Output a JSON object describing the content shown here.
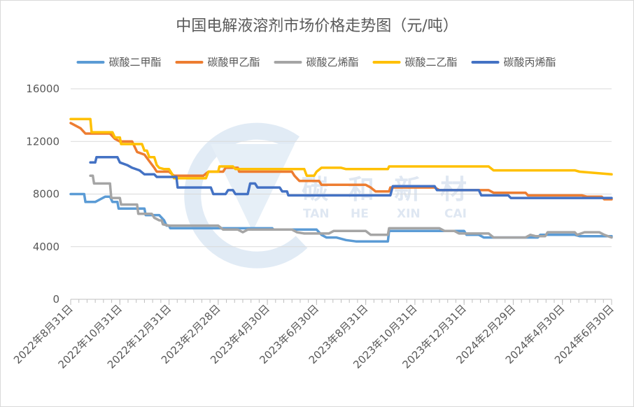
{
  "chart_data": {
    "type": "line",
    "title": "中国电解液溶剂市场价格走势图（元/吨）",
    "xlabel": "",
    "ylabel": "",
    "ylim": [
      0,
      16000
    ],
    "y_ticks": [
      "0",
      "4000",
      "8000",
      "12000",
      "16000"
    ],
    "x_range": [
      0,
      22
    ],
    "x_tick_positions": [
      0,
      2,
      4,
      6,
      8,
      10,
      12,
      14,
      16,
      18,
      20,
      22
    ],
    "categories": [
      "2022年8月31日",
      "2022年10月31日",
      "2022年12月31日",
      "2023年2月28日",
      "2023年4月30日",
      "2023年6月30日",
      "2023年8月31日",
      "2023年10月31日",
      "2023年12月31日",
      "2024年2月29日",
      "2024年4月30日",
      "2024年6月30日"
    ],
    "grid": true,
    "legend_position": "top",
    "series": [
      {
        "name": "碳酸二甲酯",
        "color": "#5b9bd5",
        "points": [
          [
            0,
            8000
          ],
          [
            0.55,
            8000
          ],
          [
            0.6,
            7400
          ],
          [
            1.0,
            7400
          ],
          [
            1.2,
            7600
          ],
          [
            1.4,
            7800
          ],
          [
            1.6,
            7800
          ],
          [
            1.7,
            7400
          ],
          [
            1.9,
            7400
          ],
          [
            1.95,
            6900
          ],
          [
            3.0,
            6900
          ],
          [
            3.05,
            6400
          ],
          [
            3.6,
            6400
          ],
          [
            3.8,
            6000
          ],
          [
            3.9,
            5600
          ],
          [
            4.0,
            5600
          ],
          [
            4.05,
            5400
          ],
          [
            8.2,
            5400
          ],
          [
            8.25,
            5300
          ],
          [
            10.0,
            5300
          ],
          [
            10.2,
            4900
          ],
          [
            10.4,
            4700
          ],
          [
            10.8,
            4700
          ],
          [
            11.2,
            4500
          ],
          [
            11.6,
            4400
          ],
          [
            12.9,
            4400
          ],
          [
            12.95,
            5200
          ],
          [
            16.0,
            5200
          ],
          [
            16.1,
            4900
          ],
          [
            16.6,
            4900
          ],
          [
            16.8,
            4700
          ],
          [
            19.0,
            4700
          ],
          [
            19.1,
            4900
          ],
          [
            20.5,
            4900
          ],
          [
            20.7,
            4800
          ],
          [
            22,
            4800
          ]
        ]
      },
      {
        "name": "碳酸甲乙酯",
        "color": "#ed7d31",
        "points": [
          [
            0,
            13400
          ],
          [
            0.4,
            13000
          ],
          [
            0.6,
            12600
          ],
          [
            1.6,
            12600
          ],
          [
            1.8,
            12200
          ],
          [
            2.0,
            12000
          ],
          [
            2.5,
            12000
          ],
          [
            2.7,
            11200
          ],
          [
            3.0,
            11000
          ],
          [
            3.2,
            10500
          ],
          [
            3.4,
            10000
          ],
          [
            3.5,
            9700
          ],
          [
            4.0,
            9700
          ],
          [
            4.2,
            9400
          ],
          [
            5.4,
            9400
          ],
          [
            5.6,
            9700
          ],
          [
            6.2,
            9700
          ],
          [
            6.3,
            10000
          ],
          [
            6.8,
            10000
          ],
          [
            6.85,
            9700
          ],
          [
            9.0,
            9700
          ],
          [
            9.1,
            9400
          ],
          [
            9.3,
            9000
          ],
          [
            10.1,
            9000
          ],
          [
            10.2,
            8700
          ],
          [
            12.0,
            8700
          ],
          [
            12.2,
            8500
          ],
          [
            12.4,
            8200
          ],
          [
            12.95,
            8200
          ],
          [
            13.0,
            8500
          ],
          [
            14.8,
            8500
          ],
          [
            15.0,
            8300
          ],
          [
            17.0,
            8300
          ],
          [
            17.2,
            8100
          ],
          [
            18.5,
            8100
          ],
          [
            18.6,
            7900
          ],
          [
            20.8,
            7900
          ],
          [
            21.0,
            7800
          ],
          [
            21.6,
            7800
          ],
          [
            21.7,
            7600
          ],
          [
            22,
            7600
          ]
        ]
      },
      {
        "name": "碳酸乙烯酯",
        "color": "#a5a5a5",
        "points": [
          [
            0.8,
            9400
          ],
          [
            0.9,
            9400
          ],
          [
            0.95,
            8800
          ],
          [
            1.6,
            8800
          ],
          [
            1.65,
            7700
          ],
          [
            2.0,
            7700
          ],
          [
            2.05,
            7200
          ],
          [
            2.7,
            7200
          ],
          [
            2.75,
            6500
          ],
          [
            3.3,
            6500
          ],
          [
            3.4,
            6200
          ],
          [
            3.6,
            6000
          ],
          [
            3.7,
            6000
          ],
          [
            3.75,
            5700
          ],
          [
            4.0,
            5600
          ],
          [
            6.0,
            5600
          ],
          [
            6.2,
            5300
          ],
          [
            6.8,
            5300
          ],
          [
            7.0,
            5100
          ],
          [
            7.2,
            5300
          ],
          [
            9.0,
            5300
          ],
          [
            9.2,
            5100
          ],
          [
            9.5,
            5000
          ],
          [
            10.5,
            5000
          ],
          [
            10.7,
            5200
          ],
          [
            12.0,
            5200
          ],
          [
            12.2,
            4900
          ],
          [
            12.9,
            4900
          ],
          [
            12.95,
            5400
          ],
          [
            15.0,
            5400
          ],
          [
            15.2,
            5200
          ],
          [
            15.6,
            5200
          ],
          [
            15.8,
            5000
          ],
          [
            17.0,
            5000
          ],
          [
            17.2,
            4700
          ],
          [
            18.5,
            4700
          ],
          [
            18.7,
            4900
          ],
          [
            18.9,
            4800
          ],
          [
            19.3,
            4800
          ],
          [
            19.4,
            5100
          ],
          [
            20.5,
            5100
          ],
          [
            20.6,
            4900
          ],
          [
            20.9,
            5100
          ],
          [
            21.5,
            5100
          ],
          [
            21.7,
            4900
          ],
          [
            22,
            4700
          ]
        ]
      },
      {
        "name": "碳酸二乙酯",
        "color": "#ffc000",
        "points": [
          [
            0,
            13700
          ],
          [
            0.8,
            13700
          ],
          [
            0.85,
            12700
          ],
          [
            1.7,
            12700
          ],
          [
            1.8,
            12300
          ],
          [
            2.0,
            12300
          ],
          [
            2.05,
            11800
          ],
          [
            2.9,
            11800
          ],
          [
            3.0,
            11300
          ],
          [
            3.1,
            11300
          ],
          [
            3.2,
            10800
          ],
          [
            3.4,
            10800
          ],
          [
            3.5,
            10200
          ],
          [
            3.6,
            10000
          ],
          [
            3.8,
            9900
          ],
          [
            4.0,
            9900
          ],
          [
            4.1,
            9600
          ],
          [
            4.2,
            9200
          ],
          [
            5.5,
            9200
          ],
          [
            5.6,
            9700
          ],
          [
            6.0,
            9700
          ],
          [
            6.05,
            10100
          ],
          [
            6.6,
            10100
          ],
          [
            6.7,
            9900
          ],
          [
            9.5,
            9900
          ],
          [
            9.6,
            9400
          ],
          [
            9.9,
            9400
          ],
          [
            10.0,
            9700
          ],
          [
            10.2,
            10000
          ],
          [
            11.0,
            10000
          ],
          [
            11.2,
            9900
          ],
          [
            12.9,
            9900
          ],
          [
            12.95,
            10100
          ],
          [
            17.0,
            10100
          ],
          [
            17.2,
            9800
          ],
          [
            20.5,
            9800
          ],
          [
            20.7,
            9700
          ],
          [
            22,
            9500
          ]
        ]
      },
      {
        "name": "碳酸丙烯酯",
        "color": "#4472c4",
        "points": [
          [
            0.8,
            10400
          ],
          [
            1.0,
            10400
          ],
          [
            1.05,
            10800
          ],
          [
            1.9,
            10800
          ],
          [
            2.0,
            10400
          ],
          [
            2.3,
            10200
          ],
          [
            2.5,
            10000
          ],
          [
            2.8,
            9800
          ],
          [
            3.0,
            9500
          ],
          [
            3.4,
            9500
          ],
          [
            3.5,
            9300
          ],
          [
            4.3,
            9300
          ],
          [
            4.35,
            8500
          ],
          [
            5.7,
            8500
          ],
          [
            5.8,
            8000
          ],
          [
            6.3,
            8000
          ],
          [
            6.4,
            8300
          ],
          [
            6.6,
            8300
          ],
          [
            6.7,
            8000
          ],
          [
            7.2,
            8000
          ],
          [
            7.3,
            8800
          ],
          [
            7.5,
            8800
          ],
          [
            7.6,
            8500
          ],
          [
            8.5,
            8500
          ],
          [
            8.6,
            8200
          ],
          [
            8.8,
            8200
          ],
          [
            8.85,
            7900
          ],
          [
            13.0,
            7900
          ],
          [
            13.1,
            8600
          ],
          [
            14.8,
            8600
          ],
          [
            14.9,
            8300
          ],
          [
            16.6,
            8300
          ],
          [
            16.7,
            7900
          ],
          [
            17.8,
            7900
          ],
          [
            17.9,
            7700
          ],
          [
            22,
            7700
          ]
        ]
      }
    ]
  },
  "watermark": {
    "letters": [
      "碳",
      "和",
      "新",
      "材"
    ],
    "latin": [
      "TAN",
      "HE",
      "XIN",
      "CAI"
    ]
  }
}
